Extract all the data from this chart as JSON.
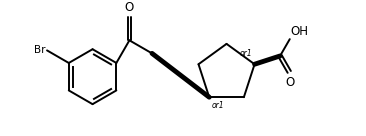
{
  "bg_color": "#ffffff",
  "line_color": "#000000",
  "lw": 1.4,
  "lw_bold": 3.5,
  "figsize": [
    3.66,
    1.36
  ],
  "dpi": 100,
  "xlim": [
    0.0,
    9.5
  ],
  "ylim": [
    0.2,
    3.8
  ]
}
